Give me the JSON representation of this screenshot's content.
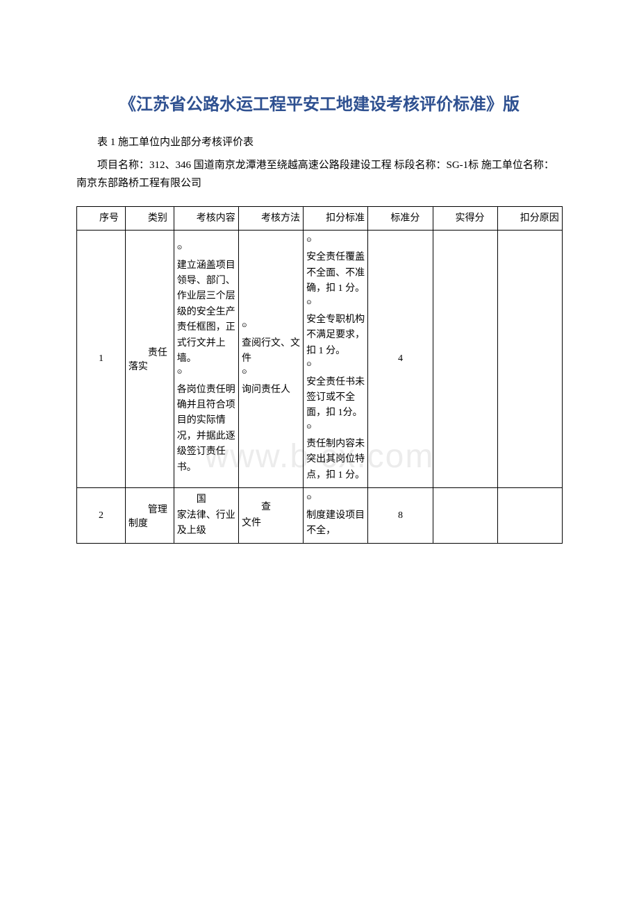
{
  "watermark": "www.b   cx.com",
  "title": "《江苏省公路水运工程平安工地建设考核评价标准》版",
  "subtitle": "表 1 施工单位内业部分考核评价表",
  "projectInfo": "项目名称：312、346 国道南京龙潭港至绕越高速公路段建设工程 标段名称：SG-1标 施工单位名称：南京东部路桥工程有限公司",
  "headers": {
    "seq": "序号",
    "category": "类别",
    "content": "考核内容",
    "method": "考核方法",
    "deduct": "扣分标准",
    "standard": "标准分",
    "actual": "实得分",
    "reason": "扣分原因"
  },
  "rows": [
    {
      "seq": "1",
      "category": "责任落实",
      "content": "建立涵盖项目领导、部门、作业层三个层级的安全生产责任框图，正式行文并上墙。\n各岗位责任明确并且符合项目的实际情况，并据此逐级签订责任书。",
      "method": "查阅行文、文件\n询问责任人",
      "deduct": "安全责任覆盖不全面、不准确，扣 1 分。\n安全专职机构不满足要求，扣 1 分。\n安全责任书未签订或不全面，扣 1分。\n责任制内容未突出其岗位特点，扣 1 分。",
      "standard": "4",
      "actual": "",
      "reason": ""
    },
    {
      "seq": "2",
      "category": "管理制度",
      "content": "国家法律、行业及上级",
      "method": "查文件",
      "deduct": "制度建设项目不全，",
      "standard": "8",
      "actual": "",
      "reason": ""
    }
  ]
}
